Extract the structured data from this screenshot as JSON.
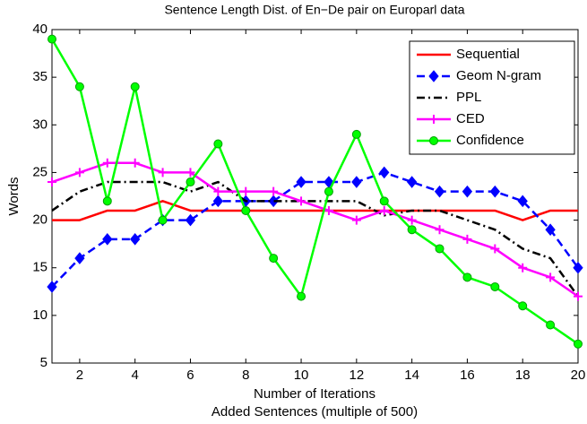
{
  "chart_data": {
    "type": "line",
    "title": "Sentence Length Dist. of En−De pair on Europarl data",
    "xlabel": "Number of Iterations",
    "xlabel2": "Added Sentences (multiple of 500)",
    "ylabel": "Words",
    "x": [
      1,
      2,
      3,
      4,
      5,
      6,
      7,
      8,
      9,
      10,
      11,
      12,
      13,
      14,
      15,
      16,
      17,
      18,
      19,
      20
    ],
    "xlim": [
      1,
      20
    ],
    "xticks": [
      2,
      4,
      6,
      8,
      10,
      12,
      14,
      16,
      18,
      20
    ],
    "ylim": [
      5,
      40
    ],
    "yticks": [
      5,
      10,
      15,
      20,
      25,
      30,
      35,
      40
    ],
    "legend": "upper-right",
    "series": [
      {
        "name": "Sequential",
        "color": "#ff0000",
        "dash": "solid",
        "marker": "none",
        "values": [
          20,
          20,
          21,
          21,
          22,
          21,
          21,
          21,
          21,
          21,
          21,
          21,
          21,
          21,
          21,
          21,
          21,
          20,
          21,
          21
        ]
      },
      {
        "name": "Geom N-gram",
        "color": "#0000ff",
        "dash": "dashed",
        "marker": "diamond",
        "values": [
          13,
          16,
          18,
          18,
          20,
          20,
          22,
          22,
          22,
          24,
          24,
          24,
          25,
          24,
          23,
          23,
          23,
          22,
          19,
          15
        ]
      },
      {
        "name": "PPL",
        "color": "#000000",
        "dash": "dashdot",
        "marker": "none",
        "values": [
          21,
          23,
          24,
          24,
          24,
          23,
          24,
          22,
          22,
          22,
          22,
          22,
          20.5,
          21,
          21,
          20,
          19,
          17,
          16,
          12
        ]
      },
      {
        "name": "CED",
        "color": "#ff00ff",
        "dash": "solid",
        "marker": "plus",
        "values": [
          24,
          25,
          26,
          26,
          25,
          25,
          23,
          23,
          23,
          22,
          21,
          20,
          21,
          20,
          19,
          18,
          17,
          15,
          14,
          12
        ]
      },
      {
        "name": "Confidence",
        "color": "#00ff00",
        "dash": "solid",
        "marker": "circle",
        "values": [
          39,
          34,
          22,
          34,
          20,
          24,
          28,
          21,
          16,
          12,
          23,
          29,
          22,
          19,
          17,
          14,
          13,
          11,
          9,
          7
        ]
      }
    ]
  }
}
